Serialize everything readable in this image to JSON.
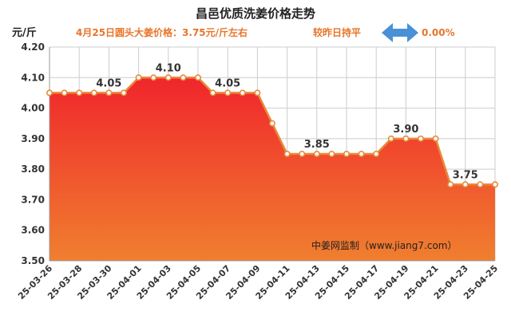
{
  "header": {
    "title": "昌邑优质洗姜价格走势",
    "unit": "元/斤",
    "price_text": "4月25日圆头大姜价格：3.75元/斤左右",
    "compare_text": "较昨日持平",
    "change_text": "0.00%"
  },
  "watermark": "中姜网监制（www.jiang7.com）",
  "colors": {
    "accent": "#e8752a",
    "line": "#e88a3c",
    "fill_top": "#f0262b",
    "fill_bottom": "#f07f2f",
    "arrow": "#4a90d6",
    "grid": "#cccccc"
  },
  "icons": {
    "compare": "double-arrow-icon"
  },
  "chart_data": {
    "type": "area",
    "title": "昌邑优质洗姜价格走势",
    "ylabel": "元/斤",
    "xlabel": "",
    "ylim": [
      3.5,
      4.2
    ],
    "yticks": [
      "3.50",
      "3.60",
      "3.70",
      "3.80",
      "3.90",
      "4.00",
      "4.10",
      "4.20"
    ],
    "grid": true,
    "x": [
      "25-03-26",
      "25-03-27",
      "25-03-28",
      "25-03-29",
      "25-03-30",
      "25-03-31",
      "25-04-01",
      "25-04-02",
      "25-04-03",
      "25-04-04",
      "25-04-05",
      "25-04-06",
      "25-04-07",
      "25-04-08",
      "25-04-09",
      "25-04-10",
      "25-04-11",
      "25-04-12",
      "25-04-13",
      "25-04-14",
      "25-04-15",
      "25-04-16",
      "25-04-17",
      "25-04-18",
      "25-04-19",
      "25-04-20",
      "25-04-21",
      "25-04-22",
      "25-04-23",
      "25-04-24",
      "25-04-25"
    ],
    "x_tick_labels": [
      "25-03-26",
      "25-03-28",
      "25-03-30",
      "25-04-01",
      "25-04-03",
      "25-04-05",
      "25-04-07",
      "25-04-09",
      "25-04-11",
      "25-04-13",
      "25-04-15",
      "25-04-17",
      "25-04-19",
      "25-04-21",
      "25-04-23",
      "25-04-25"
    ],
    "values": [
      4.05,
      4.05,
      4.05,
      4.05,
      4.05,
      4.05,
      4.1,
      4.1,
      4.1,
      4.1,
      4.1,
      4.05,
      4.05,
      4.05,
      4.05,
      3.95,
      3.85,
      3.85,
      3.85,
      3.85,
      3.85,
      3.85,
      3.85,
      3.9,
      3.9,
      3.9,
      3.9,
      3.75,
      3.75,
      3.75,
      3.75
    ],
    "data_labels": [
      {
        "date": "25-03-30",
        "text": "4.05"
      },
      {
        "date": "25-04-03",
        "text": "4.10"
      },
      {
        "date": "25-04-07",
        "text": "4.05"
      },
      {
        "date": "25-04-13",
        "text": "3.85"
      },
      {
        "date": "25-04-19",
        "text": "3.90"
      },
      {
        "date": "25-04-23",
        "text": "3.75"
      }
    ]
  }
}
